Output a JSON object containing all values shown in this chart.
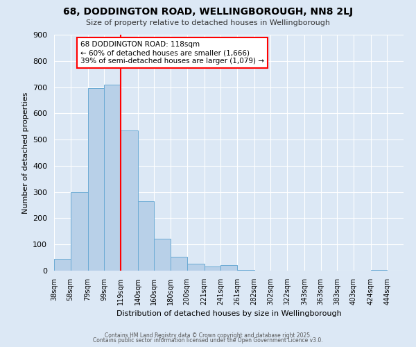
{
  "title": "68, DODDINGTON ROAD, WELLINGBOROUGH, NN8 2LJ",
  "subtitle": "Size of property relative to detached houses in Wellingborough",
  "xlabel": "Distribution of detached houses by size in Wellingborough",
  "ylabel": "Number of detached properties",
  "bin_labels": [
    "38sqm",
    "58sqm",
    "79sqm",
    "99sqm",
    "119sqm",
    "140sqm",
    "160sqm",
    "180sqm",
    "200sqm",
    "221sqm",
    "241sqm",
    "261sqm",
    "282sqm",
    "302sqm",
    "322sqm",
    "343sqm",
    "363sqm",
    "383sqm",
    "403sqm",
    "424sqm",
    "444sqm"
  ],
  "bin_edges": [
    38,
    58,
    79,
    99,
    119,
    140,
    160,
    180,
    200,
    221,
    241,
    261,
    282,
    302,
    322,
    343,
    363,
    383,
    403,
    424,
    444
  ],
  "counts": [
    45,
    300,
    695,
    710,
    535,
    265,
    122,
    53,
    27,
    16,
    20,
    3,
    1,
    0,
    0,
    0,
    0,
    0,
    0,
    2,
    1
  ],
  "bar_color": "#b8d0e8",
  "bar_edge_color": "#6aaad4",
  "vline_x": 119,
  "vline_color": "red",
  "annotation_text": "68 DODDINGTON ROAD: 118sqm\n← 60% of detached houses are smaller (1,666)\n39% of semi-detached houses are larger (1,079) →",
  "annotation_box_color": "white",
  "annotation_box_edge_color": "red",
  "ylim": [
    0,
    900
  ],
  "yticks": [
    0,
    100,
    200,
    300,
    400,
    500,
    600,
    700,
    800,
    900
  ],
  "background_color": "#dce8f5",
  "grid_color": "white",
  "footer_line1": "Contains HM Land Registry data © Crown copyright and database right 2025.",
  "footer_line2": "Contains public sector information licensed under the Open Government Licence v3.0."
}
